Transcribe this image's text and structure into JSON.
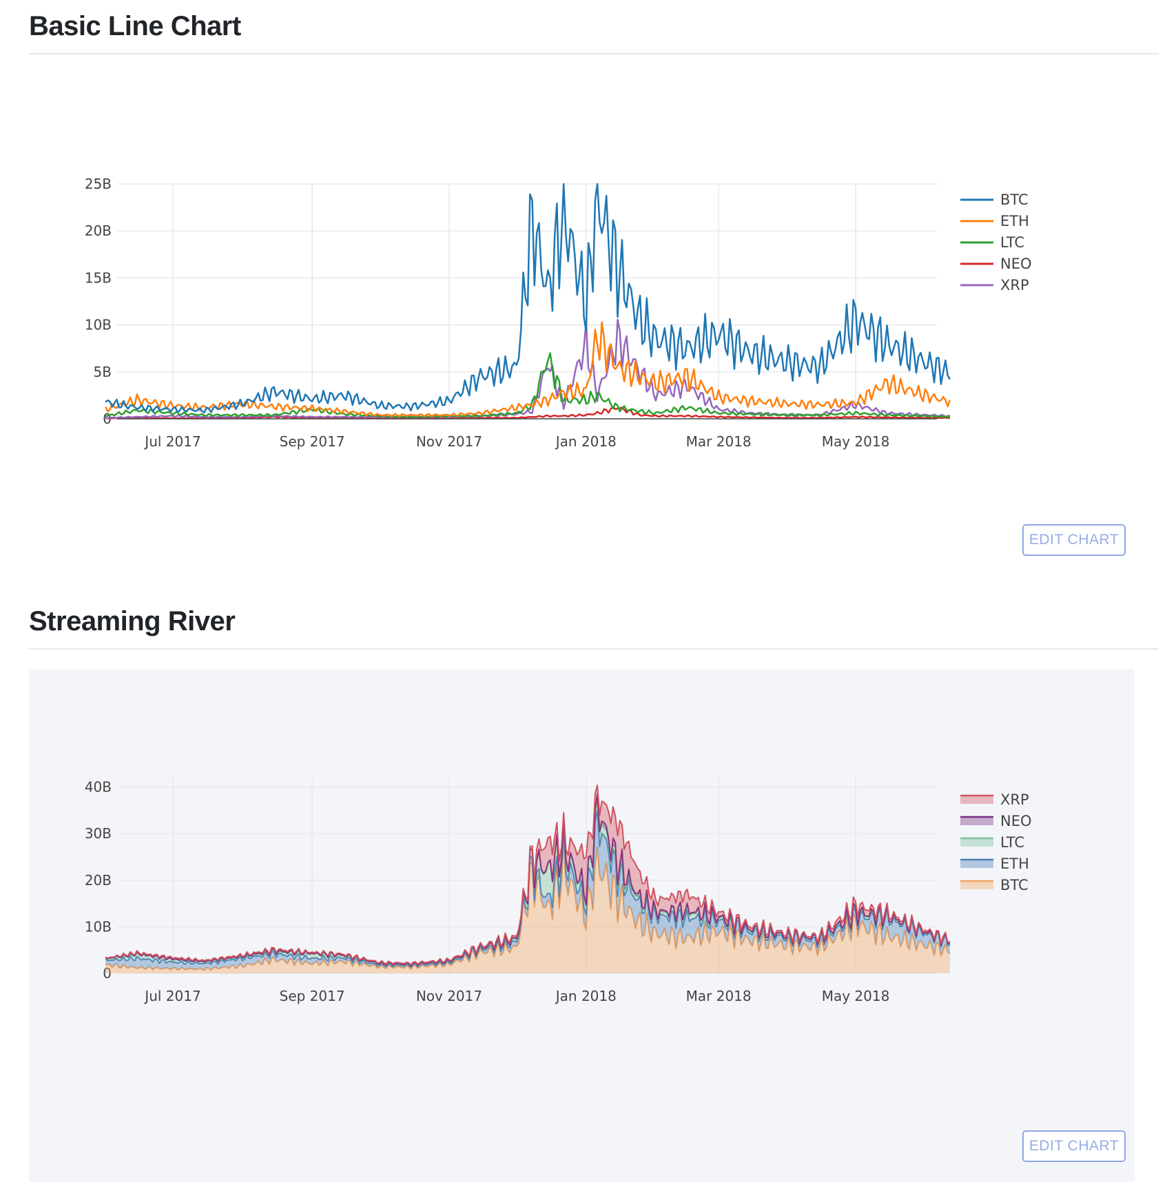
{
  "sections": [
    {
      "title": "Basic Line Chart",
      "button_label": "EDIT CHART"
    },
    {
      "title": "Streaming River",
      "button_label": "EDIT CHART"
    }
  ],
  "colors": {
    "BTC": "#1f77b4",
    "ETH": "#ff7f0e",
    "LTC": "#2ca02c",
    "NEO": "#d62728",
    "XRP": "#9467bd",
    "river_XRP": "#d1525e",
    "river_NEO": "#7a2d82",
    "river_LTC": "#7cc09a",
    "river_ETH": "#4a7fb8",
    "river_BTC": "#f2a35e"
  },
  "chart_data": [
    {
      "type": "line",
      "x_dates": [
        "2017-06-01",
        "2017-06-15",
        "2017-07-01",
        "2017-07-15",
        "2017-08-01",
        "2017-08-15",
        "2017-09-01",
        "2017-09-15",
        "2017-10-01",
        "2017-10-15",
        "2017-11-01",
        "2017-11-15",
        "2017-12-01",
        "2017-12-08",
        "2017-12-15",
        "2017-12-22",
        "2018-01-01",
        "2018-01-06",
        "2018-01-15",
        "2018-01-25",
        "2018-02-01",
        "2018-02-15",
        "2018-03-01",
        "2018-03-15",
        "2018-04-01",
        "2018-04-15",
        "2018-05-01",
        "2018-05-15",
        "2018-06-01",
        "2018-06-12"
      ],
      "series": [
        {
          "name": "BTC",
          "values": [
            1.8,
            1.2,
            1.0,
            0.9,
            1.6,
            2.9,
            2.1,
            2.5,
            1.4,
            1.3,
            1.9,
            4.5,
            5.5,
            21.0,
            13.5,
            22.0,
            12.0,
            23.5,
            16.0,
            10.5,
            8.5,
            7.5,
            9.0,
            7.0,
            6.0,
            5.5,
            10.5,
            8.0,
            6.0,
            4.8
          ]
        },
        {
          "name": "ETH",
          "values": [
            1.0,
            2.0,
            1.4,
            1.2,
            1.6,
            1.3,
            1.1,
            0.8,
            0.4,
            0.4,
            0.4,
            0.6,
            1.2,
            1.5,
            2.0,
            2.8,
            3.0,
            8.8,
            5.5,
            4.5,
            3.8,
            4.5,
            2.3,
            1.9,
            1.6,
            1.5,
            1.7,
            3.8,
            2.5,
            1.8
          ]
        },
        {
          "name": "LTC",
          "values": [
            0.3,
            0.9,
            0.6,
            0.4,
            0.4,
            0.4,
            1.0,
            0.5,
            0.3,
            0.2,
            0.3,
            0.3,
            0.6,
            1.5,
            6.5,
            2.0,
            2.0,
            2.5,
            1.2,
            0.8,
            0.6,
            1.2,
            0.6,
            0.5,
            0.4,
            0.4,
            0.6,
            0.4,
            0.3,
            0.2
          ]
        },
        {
          "name": "NEO",
          "values": [
            0.05,
            0.1,
            0.05,
            0.05,
            0.1,
            0.2,
            0.1,
            0.1,
            0.05,
            0.05,
            0.05,
            0.1,
            0.1,
            0.2,
            0.3,
            0.3,
            0.4,
            0.6,
            1.2,
            0.4,
            0.3,
            0.3,
            0.2,
            0.15,
            0.1,
            0.1,
            0.2,
            0.15,
            0.1,
            0.1
          ]
        },
        {
          "name": "XRP",
          "values": [
            0.1,
            0.2,
            0.3,
            0.2,
            0.2,
            0.3,
            0.2,
            0.2,
            0.2,
            0.2,
            0.2,
            0.3,
            0.5,
            0.8,
            6.0,
            1.5,
            8.0,
            2.5,
            8.5,
            5.0,
            2.5,
            3.5,
            1.0,
            0.6,
            0.4,
            0.4,
            1.5,
            0.6,
            0.4,
            0.3
          ]
        }
      ],
      "x_ticks": [
        "Jul 2017",
        "Sep 2017",
        "Nov 2017",
        "Jan 2018",
        "Mar 2018",
        "May 2018"
      ],
      "y_ticks": [
        "0",
        "5B",
        "10B",
        "15B",
        "20B",
        "25B"
      ],
      "ylim": [
        0,
        25
      ],
      "legend": [
        "BTC",
        "ETH",
        "LTC",
        "NEO",
        "XRP"
      ],
      "legend_position": "top-right",
      "grid": true
    },
    {
      "type": "area",
      "stacked": true,
      "x_dates": [
        "2017-06-01",
        "2017-06-15",
        "2017-07-01",
        "2017-07-15",
        "2017-08-01",
        "2017-08-15",
        "2017-09-01",
        "2017-09-15",
        "2017-10-01",
        "2017-10-15",
        "2017-11-01",
        "2017-11-15",
        "2017-12-01",
        "2017-12-08",
        "2017-12-15",
        "2017-12-22",
        "2018-01-01",
        "2018-01-06",
        "2018-01-15",
        "2018-01-25",
        "2018-02-01",
        "2018-02-15",
        "2018-03-01",
        "2018-03-15",
        "2018-04-01",
        "2018-04-15",
        "2018-05-01",
        "2018-05-15",
        "2018-06-01",
        "2018-06-12"
      ],
      "series": [
        {
          "name": "BTC",
          "values": [
            1.8,
            1.2,
            1.0,
            0.9,
            1.6,
            2.9,
            2.1,
            2.5,
            1.4,
            1.3,
            1.9,
            4.5,
            5.5,
            21.0,
            13.5,
            22.0,
            12.0,
            23.5,
            16.0,
            10.5,
            8.5,
            7.5,
            9.0,
            7.0,
            6.0,
            5.5,
            10.5,
            8.0,
            6.0,
            4.8
          ]
        },
        {
          "name": "ETH",
          "values": [
            1.0,
            2.0,
            1.4,
            1.2,
            1.6,
            1.3,
            1.1,
            0.8,
            0.4,
            0.4,
            0.4,
            0.6,
            1.2,
            1.5,
            2.0,
            2.8,
            3.0,
            8.8,
            5.5,
            4.5,
            3.8,
            4.5,
            2.3,
            1.9,
            1.6,
            1.5,
            1.7,
            3.8,
            2.5,
            1.8
          ]
        },
        {
          "name": "LTC",
          "values": [
            0.3,
            0.9,
            0.6,
            0.4,
            0.4,
            0.4,
            1.0,
            0.5,
            0.3,
            0.2,
            0.3,
            0.3,
            0.6,
            1.5,
            6.5,
            2.0,
            2.0,
            2.5,
            1.2,
            0.8,
            0.6,
            1.2,
            0.6,
            0.5,
            0.4,
            0.4,
            0.6,
            0.4,
            0.3,
            0.2
          ]
        },
        {
          "name": "NEO",
          "values": [
            0.05,
            0.1,
            0.05,
            0.05,
            0.1,
            0.2,
            0.1,
            0.1,
            0.05,
            0.05,
            0.05,
            0.1,
            0.1,
            0.2,
            0.3,
            0.3,
            0.4,
            0.6,
            1.2,
            0.4,
            0.3,
            0.3,
            0.2,
            0.15,
            0.1,
            0.1,
            0.2,
            0.15,
            0.1,
            0.1
          ]
        },
        {
          "name": "XRP",
          "values": [
            0.1,
            0.2,
            0.3,
            0.2,
            0.2,
            0.3,
            0.2,
            0.2,
            0.2,
            0.2,
            0.2,
            0.3,
            0.5,
            0.8,
            6.0,
            1.5,
            8.0,
            2.5,
            8.5,
            5.0,
            2.5,
            3.5,
            1.0,
            0.6,
            0.4,
            0.4,
            1.5,
            0.6,
            0.4,
            0.3
          ]
        }
      ],
      "x_ticks": [
        "Jul 2017",
        "Sep 2017",
        "Nov 2017",
        "Jan 2018",
        "Mar 2018",
        "May 2018"
      ],
      "y_ticks": [
        "0",
        "10B",
        "20B",
        "30B",
        "40B"
      ],
      "ylim": [
        0,
        42
      ],
      "legend": [
        "XRP",
        "NEO",
        "LTC",
        "ETH",
        "BTC"
      ],
      "legend_position": "top-right",
      "grid": true
    }
  ]
}
